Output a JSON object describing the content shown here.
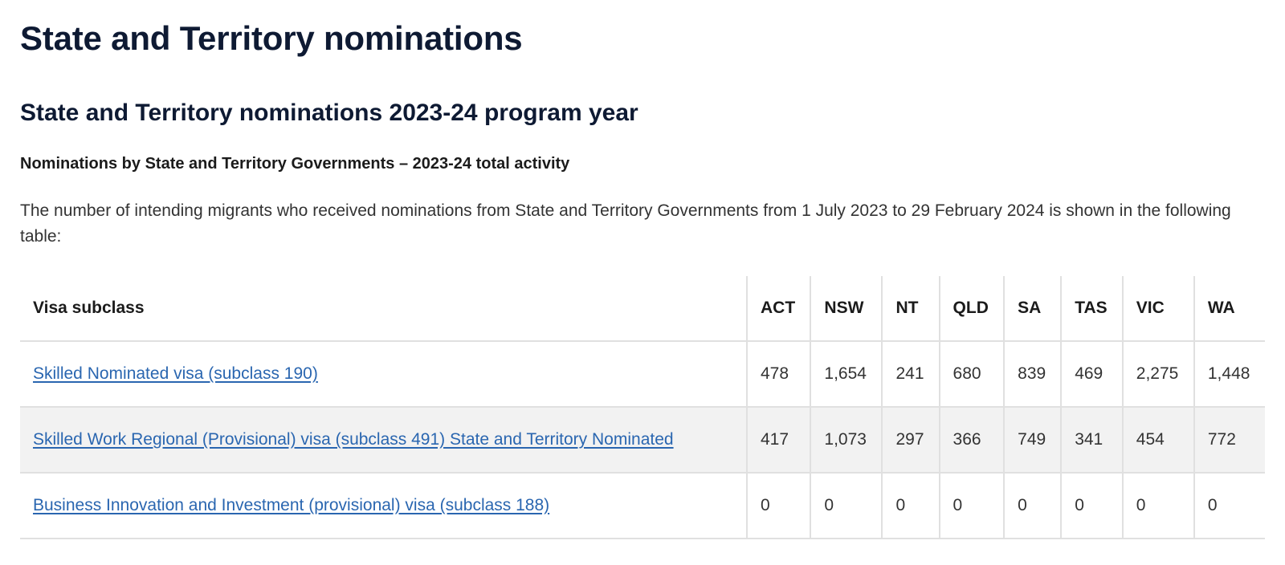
{
  "page": {
    "title": "State and Territory nominations",
    "section_title": "State and Territory nominations 2023-24 program year",
    "table_heading": "Nominations by State and Territory Governments – 2023-24 total activity",
    "intro": "The number of intending migrants who received nominations from State and Territory Governments from 1 July 2023 to 29 February 2024 is shown in the following table:"
  },
  "table": {
    "headers": [
      "Visa subclass",
      "ACT",
      "NSW",
      "NT",
      "QLD",
      "SA",
      "TAS",
      "VIC",
      "WA"
    ],
    "rows": [
      {
        "subclass": "Skilled Nominated visa (subclass 190)",
        "values": [
          "478",
          "1,654",
          "241",
          "680",
          "839",
          "469",
          "2,275",
          "1,448"
        ]
      },
      {
        "subclass": "Skilled Work Regional (Provisional) visa (subclass 491) State and Territory Nominated",
        "values": [
          "417",
          "1,073",
          "297",
          "366",
          "749",
          "341",
          "454",
          "772"
        ]
      },
      {
        "subclass": "Business Innovation and Investment (provisional) visa (subclass 188)",
        "values": [
          "0",
          "0",
          "0",
          "0",
          "0",
          "0",
          "0",
          "0"
        ]
      }
    ]
  },
  "colors": {
    "heading": "#0e1a33",
    "link": "#2a66b0",
    "row_alt": "#f2f2f2",
    "border": "#e0e0e0"
  }
}
